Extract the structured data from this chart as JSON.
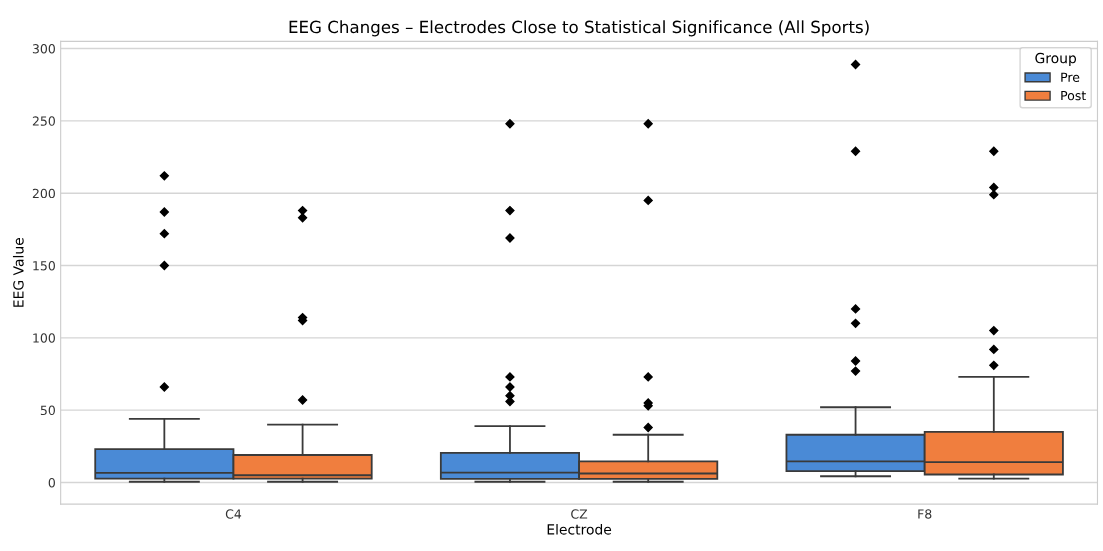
{
  "chart_data": {
    "type": "box",
    "title": "EEG Changes – Electrodes Close to Statistical Significance (All Sports)",
    "xlabel": "Electrode",
    "ylabel": "EEG Value",
    "categories": [
      "C4",
      "CZ",
      "F8"
    ],
    "series": [
      {
        "name": "Pre",
        "color": "#4a8ad6",
        "boxes": [
          {
            "low": 0.5,
            "q1": 2.7,
            "median": 6.6,
            "q3": 23,
            "high": 44,
            "outliers": [
              212,
              187,
              172,
              150,
              66
            ]
          },
          {
            "low": 0.5,
            "q1": 2.5,
            "median": 6.8,
            "q3": 20.5,
            "high": 39,
            "outliers": [
              248,
              188,
              169,
              73,
              66,
              60,
              56
            ]
          },
          {
            "low": 4.3,
            "q1": 7.8,
            "median": 14.6,
            "q3": 33,
            "high": 52,
            "outliers": [
              289,
              229,
              120,
              110,
              84,
              77
            ]
          }
        ]
      },
      {
        "name": "Post",
        "color": "#f07e3e",
        "boxes": [
          {
            "low": 0.5,
            "q1": 2.7,
            "median": 5,
            "q3": 19,
            "high": 40,
            "outliers": [
              188,
              183,
              114,
              112,
              57
            ]
          },
          {
            "low": 0.5,
            "q1": 2.5,
            "median": 6.2,
            "q3": 14.6,
            "high": 33,
            "outliers": [
              248,
              195,
              73,
              55,
              53,
              38
            ]
          },
          {
            "low": 2.7,
            "q1": 5.5,
            "median": 14,
            "q3": 35,
            "high": 73,
            "outliers": [
              229,
              204,
              199,
              105,
              92,
              81
            ]
          }
        ]
      }
    ],
    "ylim": [
      -15,
      305
    ],
    "yticks": [
      0,
      50,
      100,
      150,
      200,
      250,
      300
    ],
    "grid": "y",
    "legend": "top right",
    "legend_title": "Group",
    "marker": "diamond"
  }
}
